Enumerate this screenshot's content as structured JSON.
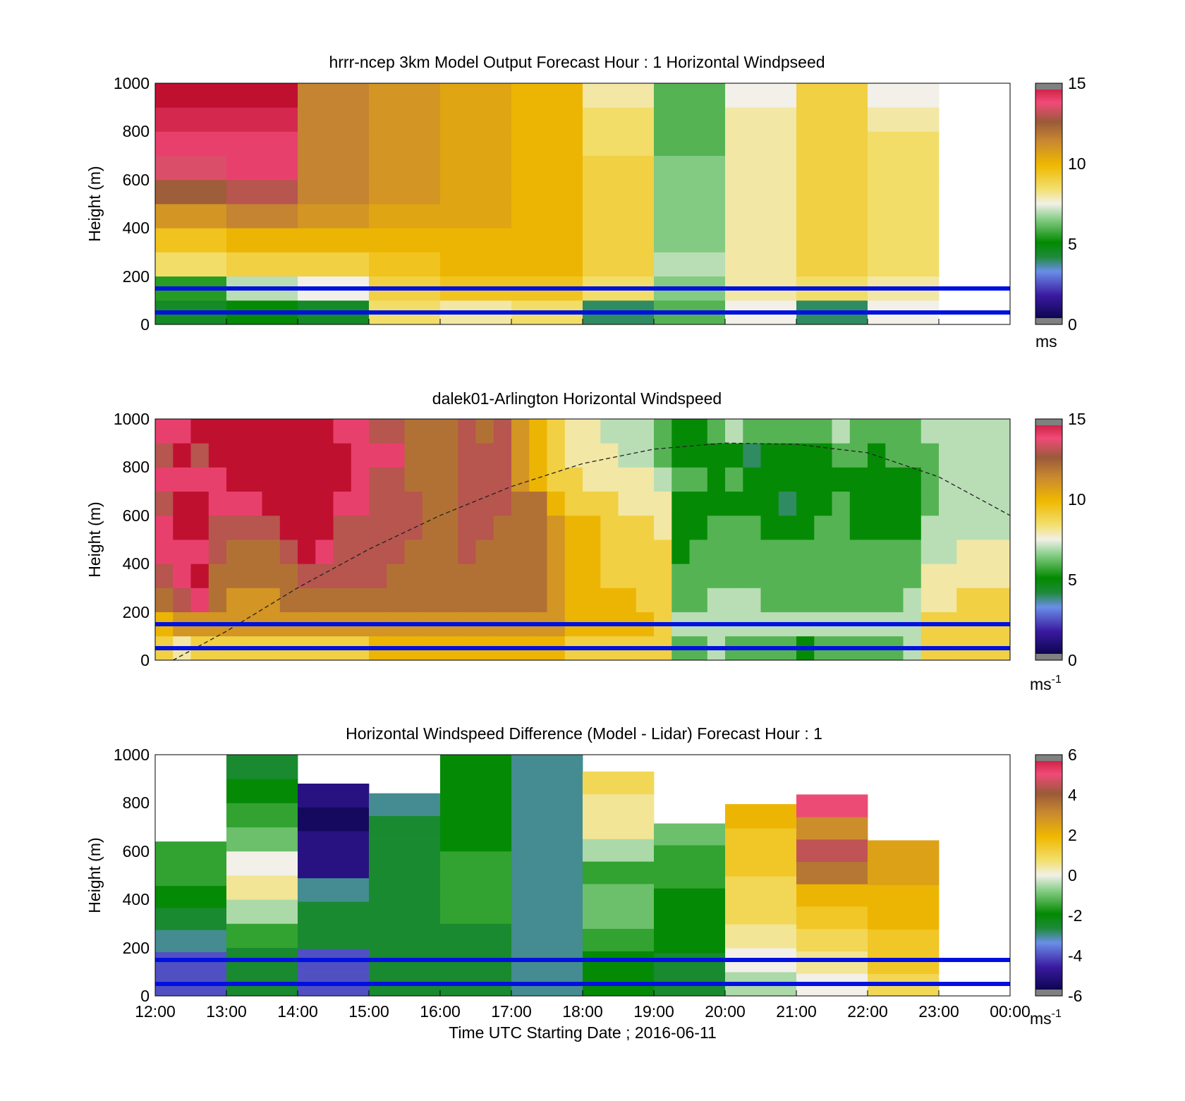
{
  "figure": {
    "xlabel": "Time UTC  Starting Date ; 2016-06-11",
    "xticks": [
      "12:00",
      "13:00",
      "14:00",
      "15:00",
      "16:00",
      "17:00",
      "18:00",
      "19:00",
      "20:00",
      "21:00",
      "22:00",
      "23:00",
      "00:00"
    ],
    "yticks": [
      "0",
      "200",
      "400",
      "600",
      "800",
      "1000"
    ],
    "ylabel": "Height (m)",
    "reference_lines_m": [
      150,
      50
    ],
    "reference_line_color": "#0010e0"
  },
  "chart_data": [
    {
      "id": "model",
      "type": "heatmap",
      "title": "hrrr-ncep 3km Model Output   Forecast Hour : 1 Horizontal Windpseed",
      "xlabel": "",
      "ylabel": "Height (m)",
      "xlim": [
        12,
        24
      ],
      "ylim": [
        0,
        1000
      ],
      "colorbar": {
        "ticks": [
          "0",
          "5",
          "10",
          "15"
        ],
        "range": [
          0,
          15
        ],
        "unit": "ms",
        "superscript": ""
      },
      "heights_m": [
        50,
        150,
        250,
        350,
        450,
        550,
        650,
        750,
        850,
        950
      ],
      "columns": [
        {
          "start": 12,
          "values": [
            4.5,
            5.5,
            8.5,
            9.5,
            11,
            12.5,
            13.5,
            14,
            14.5,
            15
          ]
        },
        {
          "start": 13,
          "values": [
            5,
            7,
            9,
            10,
            11.5,
            13,
            14,
            14,
            14.5,
            15
          ]
        },
        {
          "start": 14,
          "values": [
            4.5,
            7.5,
            9,
            10,
            11,
            11.5,
            11.5,
            11.5,
            11.5,
            11.5
          ]
        },
        {
          "start": 15,
          "values": [
            8.5,
            9,
            9.5,
            10,
            10.5,
            11,
            11,
            11,
            11,
            11
          ]
        },
        {
          "start": 16,
          "values": [
            8,
            9.5,
            10,
            10,
            10.5,
            10.5,
            10.5,
            10.5,
            10.5,
            10.5
          ]
        },
        {
          "start": 17,
          "values": [
            8.5,
            9.5,
            10,
            10,
            10,
            10,
            10,
            10,
            10,
            10
          ]
        },
        {
          "start": 18,
          "values": [
            4,
            8.5,
            9,
            9,
            9,
            9,
            9,
            8.5,
            8.5,
            8
          ]
        },
        {
          "start": 19,
          "values": [
            6,
            6.5,
            7,
            6.5,
            6.5,
            6.5,
            6.5,
            6,
            6,
            6
          ]
        },
        {
          "start": 20,
          "values": [
            7.5,
            8,
            8,
            8,
            8,
            8,
            8,
            8,
            8,
            7.5
          ]
        },
        {
          "start": 21,
          "values": [
            4,
            8.5,
            9,
            9,
            9,
            9,
            9,
            9,
            9,
            9
          ]
        },
        {
          "start": 22,
          "values": [
            7.5,
            8,
            8.5,
            8.5,
            8.5,
            8.5,
            8.5,
            8.5,
            8,
            7.5
          ]
        }
      ]
    },
    {
      "id": "lidar",
      "type": "heatmap",
      "title": "dalek01-Arlington  Horizontal Windspeed",
      "xlabel": "",
      "ylabel": "Height (m)",
      "xlim": [
        12,
        24
      ],
      "ylim": [
        0,
        1000
      ],
      "colorbar": {
        "ticks": [
          "0",
          "5",
          "10",
          "15"
        ],
        "range": [
          0,
          15
        ],
        "unit": "ms",
        "superscript": "-1"
      },
      "heights_m": [
        50,
        150,
        250,
        350,
        450,
        550,
        650,
        750,
        850,
        950
      ],
      "columns": [
        {
          "start": 12.0,
          "values": [
            9,
            10,
            12,
            13,
            14,
            14,
            13,
            14,
            13,
            14
          ]
        },
        {
          "start": 12.25,
          "values": [
            8,
            11,
            13,
            14,
            14,
            15,
            16,
            14,
            15,
            14
          ]
        },
        {
          "start": 12.5,
          "values": [
            9,
            11,
            14,
            16,
            14,
            16,
            16,
            14,
            13,
            15
          ]
        },
        {
          "start": 12.75,
          "values": [
            9,
            11,
            12,
            12,
            13,
            13,
            14,
            14,
            16,
            16
          ]
        },
        {
          "start": 13.0,
          "values": [
            9,
            11,
            11,
            12,
            12,
            13,
            14,
            16,
            16,
            16
          ]
        },
        {
          "start": 13.25,
          "values": [
            9,
            11,
            11,
            12,
            12,
            13,
            14,
            16,
            16,
            16
          ]
        },
        {
          "start": 13.5,
          "values": [
            9,
            11,
            11,
            12,
            12,
            13,
            16,
            16,
            16,
            16
          ]
        },
        {
          "start": 13.75,
          "values": [
            9,
            11,
            12,
            12,
            13,
            16,
            16,
            16,
            16,
            16
          ]
        },
        {
          "start": 14.0,
          "values": [
            9,
            11,
            12,
            13,
            16,
            16,
            16,
            16,
            16,
            16
          ]
        },
        {
          "start": 14.25,
          "values": [
            9,
            11,
            12,
            13,
            14,
            16,
            16,
            16,
            16,
            16
          ]
        },
        {
          "start": 14.5,
          "values": [
            9,
            11,
            12,
            13,
            13,
            13,
            14,
            16,
            16,
            14
          ]
        },
        {
          "start": 14.75,
          "values": [
            9,
            11,
            12,
            13,
            13,
            13,
            14,
            14,
            14,
            14
          ]
        },
        {
          "start": 15.0,
          "values": [
            10,
            11,
            12,
            13,
            13,
            13,
            13,
            13,
            14,
            13
          ]
        },
        {
          "start": 15.25,
          "values": [
            10,
            11,
            12,
            12,
            13,
            13,
            13,
            13,
            14,
            13
          ]
        },
        {
          "start": 15.5,
          "values": [
            10,
            11,
            12,
            12,
            12,
            13,
            13,
            12,
            12,
            12
          ]
        },
        {
          "start": 15.75,
          "values": [
            10,
            11,
            12,
            12,
            12,
            12,
            12,
            12,
            12,
            12
          ]
        },
        {
          "start": 16.0,
          "values": [
            10,
            11,
            12,
            12,
            12,
            12,
            12,
            12,
            12,
            12
          ]
        },
        {
          "start": 16.25,
          "values": [
            10,
            11,
            12,
            12,
            13,
            13,
            13,
            13,
            13,
            13
          ]
        },
        {
          "start": 16.5,
          "values": [
            10,
            11,
            12,
            12,
            12,
            13,
            13,
            13,
            13,
            12
          ]
        },
        {
          "start": 16.75,
          "values": [
            10,
            11,
            12,
            12,
            12,
            12,
            13,
            13,
            13,
            13
          ]
        },
        {
          "start": 17.0,
          "values": [
            10,
            11,
            12,
            12,
            12,
            12,
            12,
            11,
            11,
            11
          ]
        },
        {
          "start": 17.25,
          "values": [
            10,
            11,
            12,
            12,
            12,
            12,
            12,
            10,
            10,
            10
          ]
        },
        {
          "start": 17.5,
          "values": [
            10,
            11,
            11,
            11,
            11,
            11,
            10,
            9,
            9,
            9
          ]
        },
        {
          "start": 17.75,
          "values": [
            9,
            10,
            10,
            10,
            10,
            10,
            9,
            9,
            8,
            8
          ]
        },
        {
          "start": 18.0,
          "values": [
            9,
            10,
            10,
            10,
            10,
            10,
            9,
            8,
            8,
            8
          ]
        },
        {
          "start": 18.25,
          "values": [
            9,
            10,
            10,
            9,
            9,
            9,
            9,
            8,
            8,
            7
          ]
        },
        {
          "start": 18.5,
          "values": [
            9,
            10,
            10,
            9,
            9,
            9,
            8,
            8,
            7,
            7
          ]
        },
        {
          "start": 18.75,
          "values": [
            9,
            10,
            9,
            9,
            9,
            9,
            8,
            8,
            7,
            7
          ]
        },
        {
          "start": 19.0,
          "values": [
            9,
            9,
            9,
            9,
            9,
            8,
            8,
            7,
            6,
            6
          ]
        },
        {
          "start": 19.25,
          "values": [
            6,
            7,
            6,
            6,
            5,
            5,
            5,
            6,
            5,
            5
          ]
        },
        {
          "start": 19.5,
          "values": [
            6,
            7,
            6,
            6,
            6,
            5,
            5,
            6,
            5,
            5
          ]
        },
        {
          "start": 19.75,
          "values": [
            7,
            7,
            7,
            6,
            6,
            6,
            5,
            5,
            5,
            6
          ]
        },
        {
          "start": 20.0,
          "values": [
            6,
            7,
            7,
            6,
            6,
            6,
            5,
            6,
            5,
            7
          ]
        },
        {
          "start": 20.25,
          "values": [
            6,
            7,
            7,
            6,
            6,
            6,
            5,
            5,
            4,
            6
          ]
        },
        {
          "start": 20.5,
          "values": [
            6,
            7,
            6,
            6,
            6,
            5,
            5,
            5,
            5,
            6
          ]
        },
        {
          "start": 20.75,
          "values": [
            6,
            7,
            6,
            6,
            6,
            5,
            4,
            5,
            5,
            6
          ]
        },
        {
          "start": 21.0,
          "values": [
            5,
            7,
            6,
            6,
            6,
            5,
            5,
            5,
            5,
            6
          ]
        },
        {
          "start": 21.25,
          "values": [
            6,
            7,
            6,
            6,
            6,
            6,
            5,
            5,
            5,
            6
          ]
        },
        {
          "start": 21.5,
          "values": [
            6,
            7,
            6,
            6,
            6,
            6,
            6,
            5,
            6,
            7
          ]
        },
        {
          "start": 21.75,
          "values": [
            6,
            7,
            6,
            6,
            6,
            5,
            5,
            5,
            6,
            6
          ]
        },
        {
          "start": 22.0,
          "values": [
            6,
            7,
            6,
            6,
            6,
            5,
            5,
            5,
            5,
            6
          ]
        },
        {
          "start": 22.25,
          "values": [
            6,
            7,
            6,
            6,
            6,
            5,
            5,
            5,
            6,
            6
          ]
        },
        {
          "start": 22.5,
          "values": [
            7,
            7,
            7,
            6,
            6,
            5,
            5,
            5,
            6,
            6
          ]
        },
        {
          "start": 22.75,
          "values": [
            9,
            9,
            8,
            8,
            7,
            7,
            6,
            6,
            6,
            7
          ]
        },
        {
          "start": 23.0,
          "values": [
            9,
            9,
            8,
            8,
            7,
            7,
            7,
            7,
            7,
            7
          ]
        },
        {
          "start": 23.25,
          "values": [
            9,
            9,
            9,
            8,
            8,
            7,
            7,
            7,
            7,
            7
          ]
        },
        {
          "start": 23.5,
          "values": [
            9,
            9,
            9,
            8,
            8,
            7,
            7,
            7,
            7,
            7
          ]
        },
        {
          "start": 23.75,
          "values": [
            9,
            9,
            9,
            8,
            8,
            7,
            7,
            7,
            7,
            7
          ]
        }
      ],
      "dashed_curve": {
        "x": [
          12.25,
          13,
          14,
          15,
          16,
          17,
          18,
          19,
          20,
          21,
          22,
          23,
          24
        ],
        "y": [
          0,
          120,
          300,
          460,
          600,
          720,
          815,
          875,
          900,
          895,
          860,
          760,
          600
        ]
      }
    },
    {
      "id": "difference",
      "type": "heatmap",
      "title": "Horizontal Windspeed Difference (Model - Lidar) Forecast Hour : 1",
      "xlabel": "Time UTC  Starting Date ; 2016-06-11",
      "ylabel": "Height (m)",
      "xlim": [
        12,
        24
      ],
      "ylim": [
        0,
        1000
      ],
      "colorbar": {
        "ticks": [
          "-6",
          "-4",
          "-2",
          "0",
          "2",
          "4",
          "6"
        ],
        "range": [
          -6,
          6
        ],
        "unit": "ms",
        "superscript": "-1"
      },
      "columns": [
        {
          "start": 12,
          "top": 640,
          "values": [
            -4,
            -4,
            -3,
            -2.5,
            -2,
            -1.5,
            -1.5
          ]
        },
        {
          "start": 13,
          "top": 1000,
          "values": [
            -2.5,
            -2.5,
            -1.5,
            -0.5,
            0.5,
            0,
            -1,
            -1.5,
            -2,
            -2.5
          ]
        },
        {
          "start": 14,
          "top": 880,
          "values": [
            -4,
            -4,
            -2.5,
            -2.5,
            -3,
            -5,
            -5,
            -5.5,
            -5
          ]
        },
        {
          "start": 15,
          "top": 840,
          "values": [
            -2.5,
            -2.5,
            -2.5,
            -2.5,
            -2.5,
            -2.5,
            -2.5,
            -2.5,
            -3
          ]
        },
        {
          "start": 16,
          "top": 1000,
          "values": [
            -2.5,
            -2.5,
            -2.5,
            -1.5,
            -1.5,
            -1.5,
            -2,
            -2,
            -2,
            -2
          ]
        },
        {
          "start": 17,
          "top": 1000,
          "values": [
            -3,
            -3,
            -3,
            -3,
            -3,
            -3,
            -3,
            -3,
            -3,
            -3
          ]
        },
        {
          "start": 18,
          "top": 930,
          "values": [
            -2,
            -2,
            -1.5,
            -1,
            -1,
            -1.5,
            -0.5,
            0.5,
            0.5,
            1
          ]
        },
        {
          "start": 19,
          "top": 715,
          "values": [
            -2.5,
            -2.5,
            -2,
            -2,
            -2,
            -1.5,
            -1.5,
            -1
          ]
        },
        {
          "start": 20,
          "top": 795,
          "values": [
            -0.5,
            0,
            0.5,
            1,
            1,
            1.5,
            1.5,
            2
          ]
        },
        {
          "start": 21,
          "top": 835,
          "values": [
            0,
            0.5,
            1,
            1.5,
            2,
            3.5,
            4.5,
            3,
            5
          ]
        },
        {
          "start": 22,
          "top": 645,
          "values": [
            1,
            1.5,
            1.5,
            2,
            2,
            2.5,
            2.5
          ]
        }
      ]
    }
  ]
}
